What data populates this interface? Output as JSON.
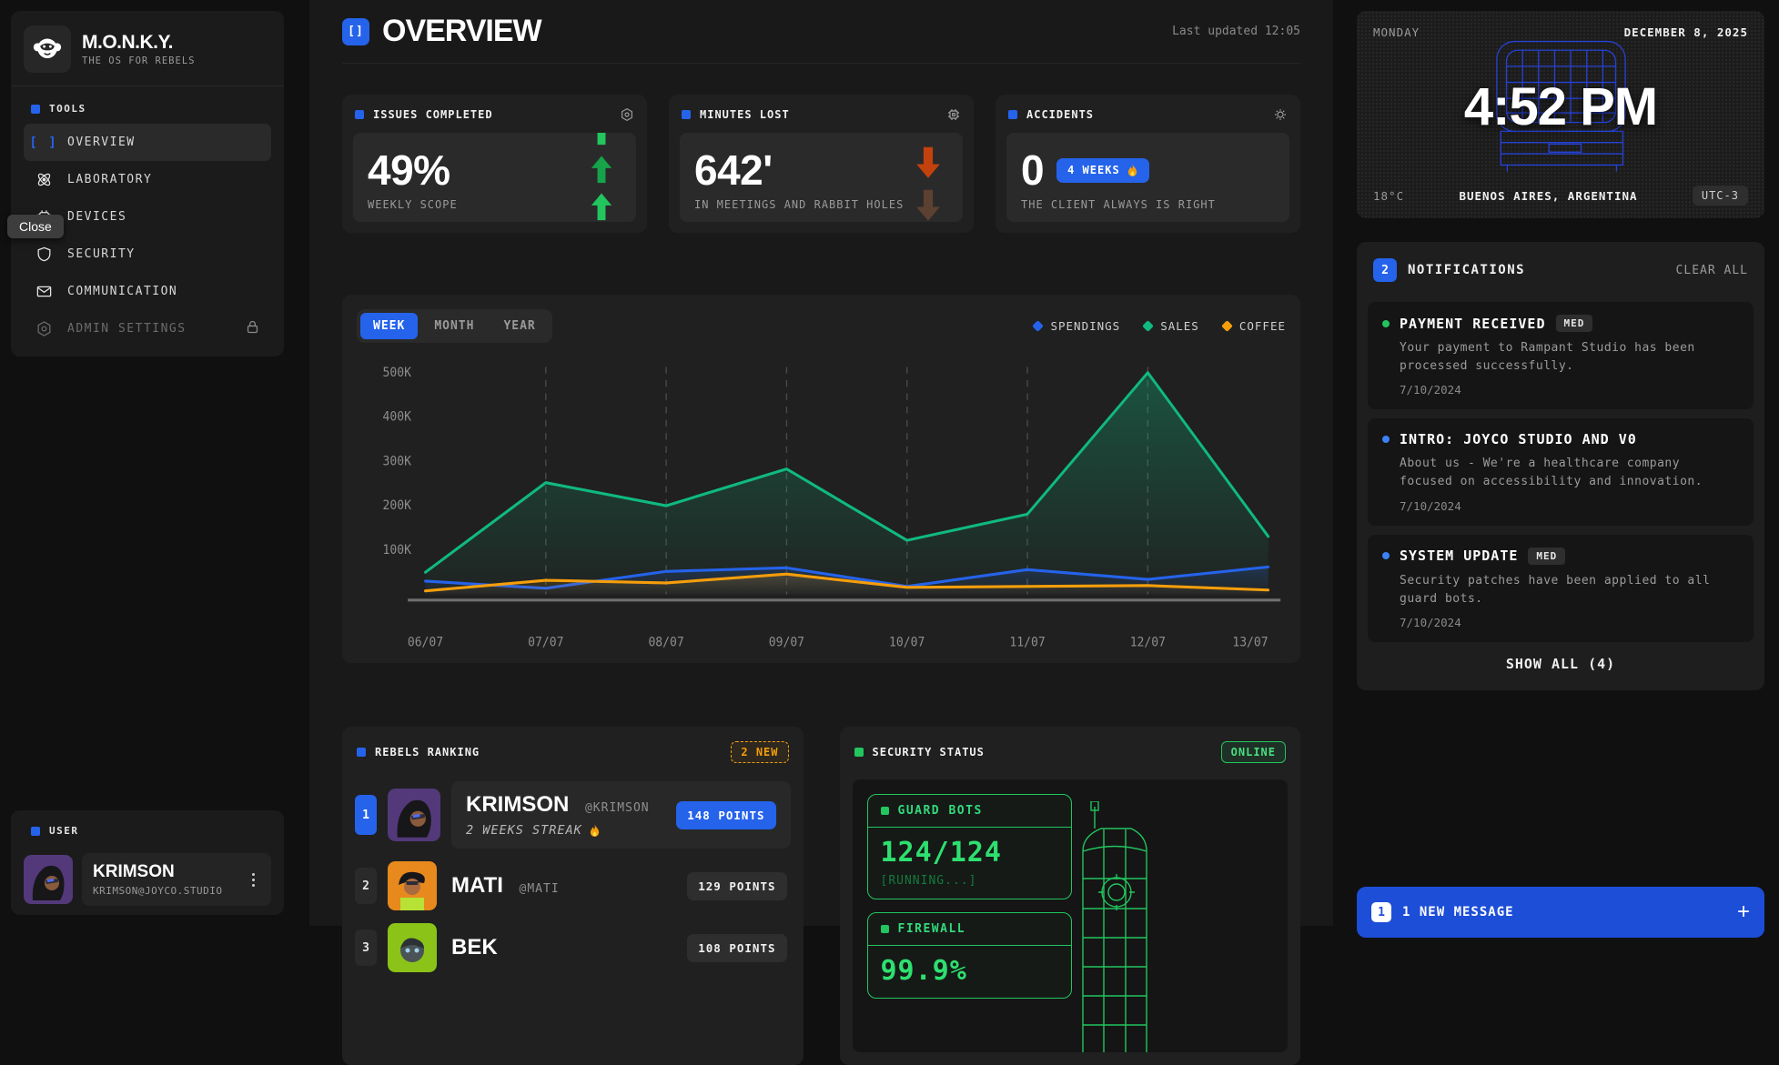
{
  "app": {
    "name": "M.O.N.K.Y.",
    "tagline": "THE OS FOR REBELS"
  },
  "sidebar": {
    "section_label": "TOOLS",
    "items": [
      {
        "label": "OVERVIEW",
        "icon": "brackets-icon",
        "active": true
      },
      {
        "label": "LABORATORY",
        "icon": "atom-icon"
      },
      {
        "label": "DEVICES",
        "icon": "chip-icon"
      },
      {
        "label": "SECURITY",
        "icon": "shield-icon"
      },
      {
        "label": "COMMUNICATION",
        "icon": "mail-icon"
      },
      {
        "label": "ADMIN SETTINGS",
        "icon": "hex-gear-icon",
        "locked": true
      }
    ],
    "tooltip": "Close",
    "user_section_label": "USER",
    "user": {
      "name": "KRIMSON",
      "email": "KRIMSON@JOYCO.STUDIO"
    }
  },
  "header": {
    "icon_glyph": "[]",
    "title": "OVERVIEW",
    "last_updated": "Last updated 12:05"
  },
  "stats": [
    {
      "title": "ISSUES COMPLETED",
      "value": "49%",
      "caption": "WEEKLY SCOPE",
      "trend": "up",
      "trend_color": "#22c55e"
    },
    {
      "title": "MINUTES LOST",
      "value": "642'",
      "caption": "IN MEETINGS AND RABBIT HOLES",
      "trend": "down",
      "trend_color": "#c2410c"
    },
    {
      "title": "ACCIDENTS",
      "value": "0",
      "streak_badge": "4 WEEKS",
      "streak_icon": "🔥",
      "caption": "THE CLIENT ALWAYS IS RIGHT"
    }
  ],
  "chart": {
    "tabs": [
      "WEEK",
      "MONTH",
      "YEAR"
    ],
    "active_tab": "WEEK",
    "legend": [
      {
        "label": "SPENDINGS",
        "color": "#2563eb"
      },
      {
        "label": "SALES",
        "color": "#10b981"
      },
      {
        "label": "COFFEE",
        "color": "#f59e0b"
      }
    ]
  },
  "chart_data": {
    "type": "area",
    "x": [
      "06/07",
      "07/07",
      "08/07",
      "09/07",
      "10/07",
      "11/07",
      "12/07",
      "13/07"
    ],
    "series": [
      {
        "name": "SALES",
        "color": "#10b981",
        "values": [
          50000,
          252000,
          200000,
          283000,
          122000,
          181000,
          500000,
          131000
        ]
      },
      {
        "name": "SPENDINGS",
        "color": "#2563eb",
        "values": [
          30000,
          14000,
          52000,
          60000,
          18000,
          56000,
          34000,
          62000
        ]
      },
      {
        "name": "COFFEE",
        "color": "#f59e0b",
        "values": [
          8000,
          32000,
          26000,
          46000,
          16000,
          18000,
          20000,
          10000
        ]
      }
    ],
    "ylim": [
      0,
      500000
    ],
    "yticks": [
      {
        "value": 100000,
        "label": "100K"
      },
      {
        "value": 200000,
        "label": "200K"
      },
      {
        "value": 300000,
        "label": "300K"
      },
      {
        "value": 400000,
        "label": "400K"
      },
      {
        "value": 500000,
        "label": "500K"
      }
    ],
    "grid": "vertical-dashed",
    "legend_position": "top-right"
  },
  "ranking": {
    "title": "REBELS RANKING",
    "new_badge": "2 NEW",
    "rows": [
      {
        "rank": "1",
        "name": "KRIMSON",
        "handle": "@KRIMSON",
        "streak": "2 WEEKS STREAK",
        "streak_icon": "🔥",
        "points": "148 POINTS",
        "highlight": true
      },
      {
        "rank": "2",
        "name": "MATI",
        "handle": "@MATI",
        "points": "129 POINTS"
      },
      {
        "rank": "3",
        "name": "BEK",
        "handle": "",
        "points": "108 POINTS"
      }
    ]
  },
  "security": {
    "title": "SECURITY STATUS",
    "status": "ONLINE",
    "guard_bots": {
      "label": "GUARD BOTS",
      "value": "124/124",
      "status": "[RUNNING...]"
    },
    "firewall": {
      "label": "FIREWALL",
      "value": "99.9%"
    }
  },
  "clock": {
    "day": "MONDAY",
    "date": "DECEMBER 8, 2025",
    "time": "4:52 PM",
    "temp": "18°C",
    "location": "BUENOS AIRES, ARGENTINA",
    "utc": "UTC-3"
  },
  "notifications": {
    "count": "2",
    "title": "NOTIFICATIONS",
    "clear_label": "CLEAR ALL",
    "items": [
      {
        "title": "PAYMENT RECEIVED",
        "badge": "MED",
        "dot_color": "#22c55e",
        "body": "Your payment to Rampant Studio has been processed successfully.",
        "date": "7/10/2024"
      },
      {
        "title": "INTRO: JOYCO STUDIO AND V0",
        "badge": "",
        "dot_color": "#3b82f6",
        "body": "About us - We're a healthcare company focused on accessibility and innovation.",
        "date": "7/10/2024"
      },
      {
        "title": "SYSTEM UPDATE",
        "badge": "MED",
        "dot_color": "#3b82f6",
        "body": "Security patches have been applied to all guard bots.",
        "date": "7/10/2024"
      }
    ],
    "show_all": "SHOW ALL (4)"
  },
  "message_bar": {
    "count": "1",
    "label": "1 NEW MESSAGE"
  }
}
